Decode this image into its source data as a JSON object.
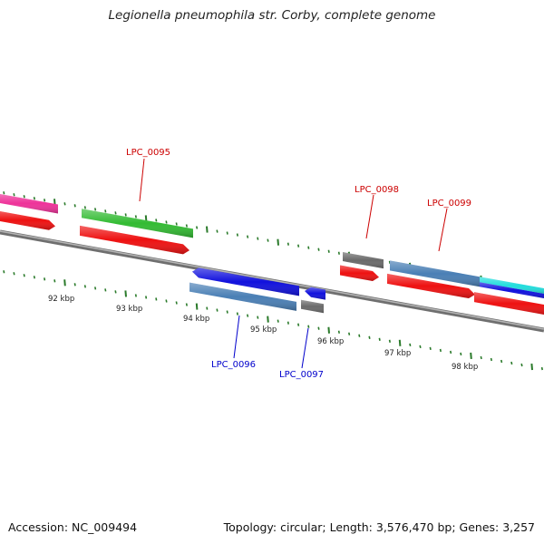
{
  "title": "Legionella pneumophila str. Corby, complete genome",
  "footer": {
    "accession": "Accession: NC_009494",
    "summary": "Topology: circular; Length: 3,576,470 bp; Genes: 3,257"
  },
  "scale_labels": [
    "92 kbp",
    "93 kbp",
    "94 kbp",
    "95 kbp",
    "96 kbp",
    "97 kbp",
    "98 kbp"
  ],
  "gene_labels": {
    "forward": [
      "LPC_0095",
      "LPC_0098",
      "LPC_0099"
    ],
    "reverse": [
      "LPC_0096",
      "LPC_0097"
    ]
  },
  "colors": {
    "forward_label": "#cc0000",
    "reverse_label": "#0000cc",
    "tick": "#2a7a2a",
    "backbone": "#8a8a8a",
    "cds": "#ee1111",
    "green_feature": "#33bb33",
    "pink_feature": "#ee3399",
    "blue_feature": "#1111dd",
    "steel_feature": "#4a7fb5",
    "gray_feature": "#6a6a6a",
    "cyan_feature": "#22dddd"
  }
}
